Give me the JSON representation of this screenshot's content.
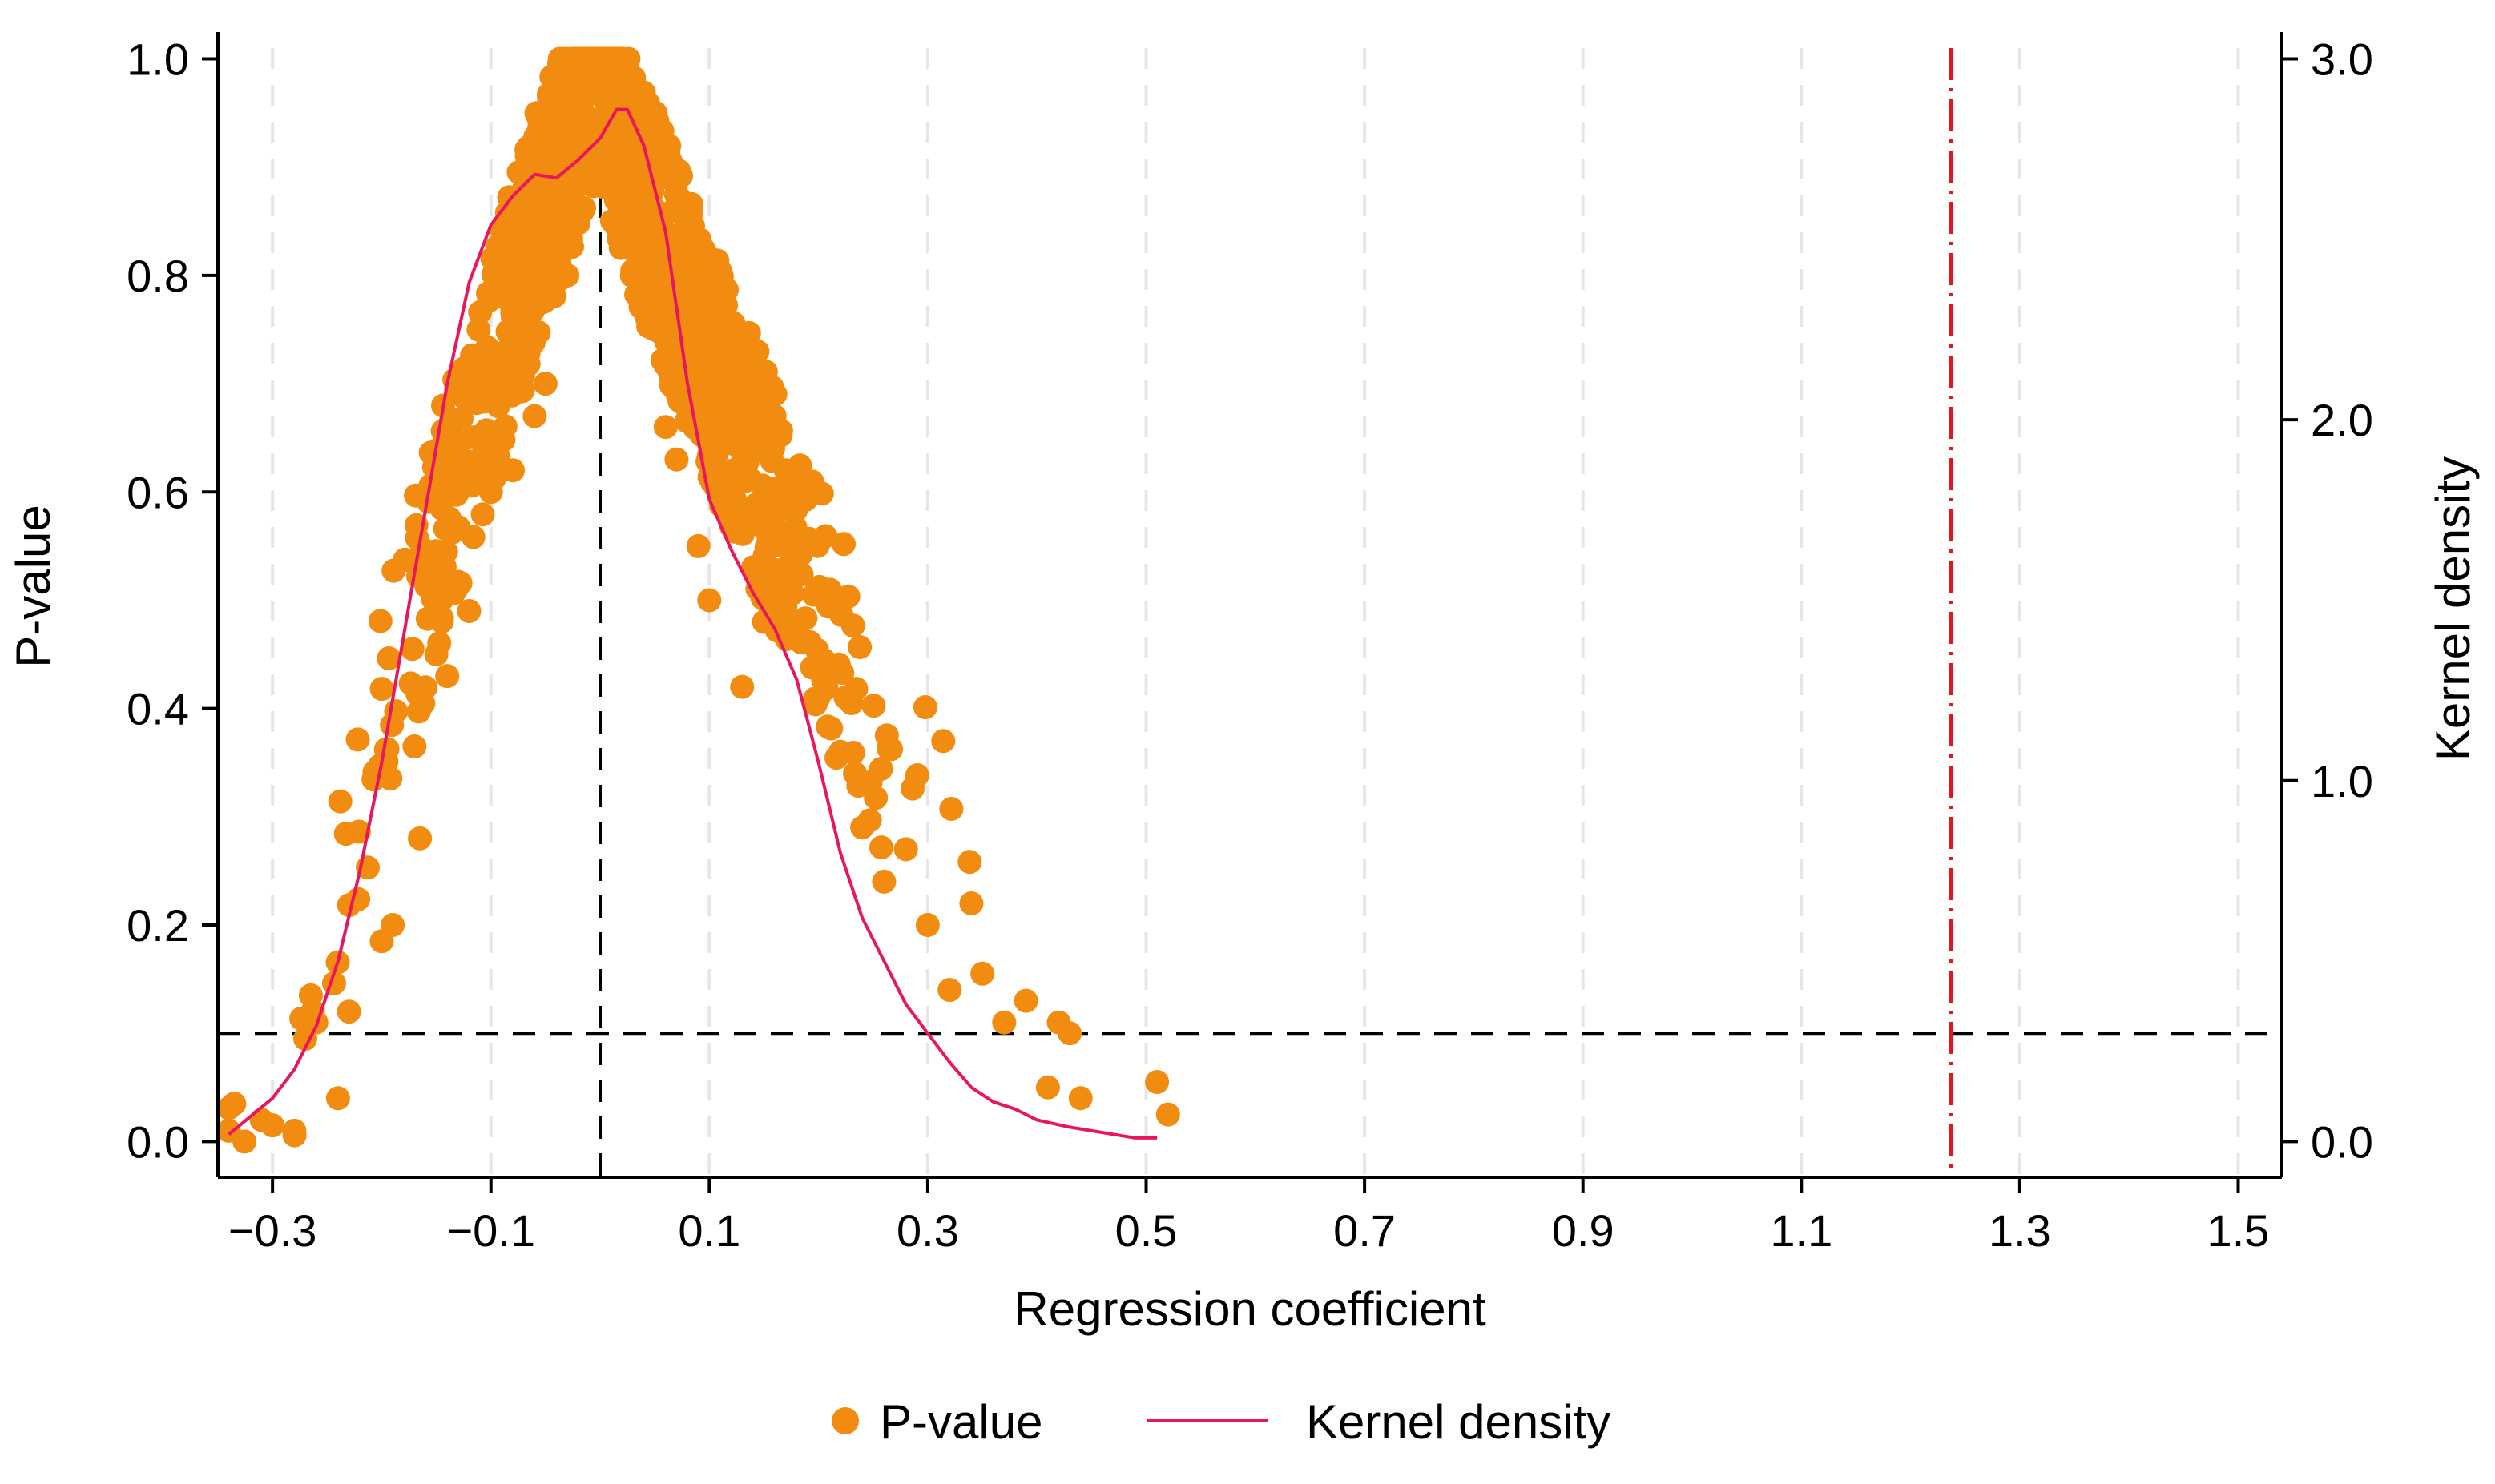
{
  "chart_data": {
    "type": "scatter",
    "title": "",
    "xlabel": "Regression coefficient",
    "ylabel_left": "P-value",
    "ylabel_right": "Kernel density",
    "xlim": [
      -0.35,
      1.54
    ],
    "ylim_left": [
      -0.033,
      1.01
    ],
    "ylim_right": [
      -0.099,
      3.03
    ],
    "x_ticks": [
      -0.3,
      -0.1,
      0.1,
      0.3,
      0.5,
      0.7,
      0.9,
      1.1,
      1.3,
      1.5
    ],
    "x_tick_labels": [
      "−0.3",
      "−0.1",
      "0.1",
      "0.3",
      "0.5",
      "0.7",
      "0.9",
      "1.1",
      "1.3",
      "1.5"
    ],
    "y_ticks_left": [
      0.0,
      0.2,
      0.4,
      0.6,
      0.8,
      1.0
    ],
    "y_tick_labels_left": [
      "0.0",
      "0.2",
      "0.4",
      "0.6",
      "0.8",
      "1.0"
    ],
    "y_ticks_right": [
      0.0,
      1.0,
      2.0,
      3.0
    ],
    "y_tick_labels_right": [
      "0.0",
      "1.0",
      "2.0",
      "3.0"
    ],
    "grid": "vertical dashed at x ticks",
    "reference_lines": [
      {
        "orientation": "vertical",
        "x": 0.0,
        "style": "dashed",
        "color": "#000000"
      },
      {
        "orientation": "horizontal",
        "y": 0.1,
        "axis": "left",
        "style": "dashed",
        "color": "#000000"
      },
      {
        "orientation": "vertical",
        "x": 1.237,
        "style": "dash-dot",
        "color": "#e8141c"
      }
    ],
    "series": [
      {
        "name": "P-value",
        "kind": "scatter",
        "axis": "left",
        "color": "#f28c10",
        "n_points": 1200,
        "points": [
          [
            -0.34,
            0.01
          ],
          [
            -0.335,
            0.035
          ],
          [
            -0.31,
            0.02
          ],
          [
            -0.3,
            0.015
          ],
          [
            -0.28,
            0.01
          ],
          [
            -0.27,
            0.095
          ],
          [
            -0.26,
            0.11
          ],
          [
            -0.265,
            0.135
          ],
          [
            -0.24,
            0.04
          ],
          [
            -0.23,
            0.12
          ],
          [
            -0.2,
            0.185
          ],
          [
            -0.19,
            0.2
          ],
          [
            -0.17,
            0.365
          ],
          [
            -0.165,
            0.28
          ],
          [
            -0.15,
            0.45
          ],
          [
            -0.14,
            0.43
          ],
          [
            -0.12,
            0.49
          ],
          [
            -0.1,
            0.6
          ],
          [
            -0.08,
            0.62
          ],
          [
            -0.06,
            0.67
          ],
          [
            -0.05,
            0.7
          ],
          [
            -0.03,
            0.8
          ],
          [
            -0.02,
            0.85
          ],
          [
            -0.01,
            0.93
          ],
          [
            0.0,
            1.0
          ],
          [
            0.01,
            0.96
          ],
          [
            0.02,
            0.91
          ],
          [
            0.03,
            0.84
          ],
          [
            0.05,
            0.75
          ],
          [
            0.06,
            0.66
          ],
          [
            0.07,
            0.63
          ],
          [
            0.09,
            0.55
          ],
          [
            0.1,
            0.5
          ],
          [
            0.13,
            0.42
          ],
          [
            0.15,
            0.48
          ],
          [
            0.17,
            0.62
          ],
          [
            0.18,
            0.6
          ],
          [
            0.2,
            0.41
          ],
          [
            0.22,
            0.36
          ],
          [
            0.24,
            0.29
          ],
          [
            0.26,
            0.24
          ],
          [
            0.28,
            0.27
          ],
          [
            0.3,
            0.2
          ],
          [
            0.32,
            0.14
          ],
          [
            0.34,
            0.22
          ],
          [
            0.35,
            0.155
          ],
          [
            0.37,
            0.11
          ],
          [
            0.39,
            0.13
          ],
          [
            0.41,
            0.05
          ],
          [
            0.42,
            0.11
          ],
          [
            0.43,
            0.1
          ],
          [
            0.44,
            0.04
          ],
          [
            0.51,
            0.055
          ],
          [
            0.52,
            0.025
          ]
        ]
      },
      {
        "name": "Kernel density",
        "kind": "line",
        "axis": "right",
        "color": "#e8175d",
        "points": [
          [
            -0.34,
            0.02
          ],
          [
            -0.32,
            0.07
          ],
          [
            -0.3,
            0.12
          ],
          [
            -0.28,
            0.2
          ],
          [
            -0.26,
            0.32
          ],
          [
            -0.24,
            0.5
          ],
          [
            -0.22,
            0.75
          ],
          [
            -0.2,
            1.05
          ],
          [
            -0.18,
            1.4
          ],
          [
            -0.16,
            1.75
          ],
          [
            -0.14,
            2.1
          ],
          [
            -0.12,
            2.38
          ],
          [
            -0.1,
            2.54
          ],
          [
            -0.08,
            2.62
          ],
          [
            -0.06,
            2.68
          ],
          [
            -0.04,
            2.67
          ],
          [
            -0.02,
            2.72
          ],
          [
            0.0,
            2.78
          ],
          [
            0.015,
            2.86
          ],
          [
            0.025,
            2.86
          ],
          [
            0.04,
            2.76
          ],
          [
            0.06,
            2.52
          ],
          [
            0.08,
            2.1
          ],
          [
            0.1,
            1.78
          ],
          [
            0.12,
            1.64
          ],
          [
            0.14,
            1.52
          ],
          [
            0.16,
            1.42
          ],
          [
            0.18,
            1.28
          ],
          [
            0.2,
            1.05
          ],
          [
            0.22,
            0.8
          ],
          [
            0.24,
            0.62
          ],
          [
            0.26,
            0.5
          ],
          [
            0.28,
            0.38
          ],
          [
            0.3,
            0.3
          ],
          [
            0.32,
            0.22
          ],
          [
            0.34,
            0.15
          ],
          [
            0.36,
            0.11
          ],
          [
            0.38,
            0.09
          ],
          [
            0.4,
            0.06
          ],
          [
            0.43,
            0.04
          ],
          [
            0.45,
            0.03
          ],
          [
            0.47,
            0.02
          ],
          [
            0.49,
            0.01
          ],
          [
            0.51,
            0.01
          ]
        ]
      }
    ],
    "legend": {
      "placement": "bottom-center",
      "entries": [
        {
          "label": "P-value",
          "marker": "circle",
          "color": "#f28c10"
        },
        {
          "label": "Kernel density",
          "marker": "line",
          "color": "#e8175d"
        }
      ]
    }
  }
}
